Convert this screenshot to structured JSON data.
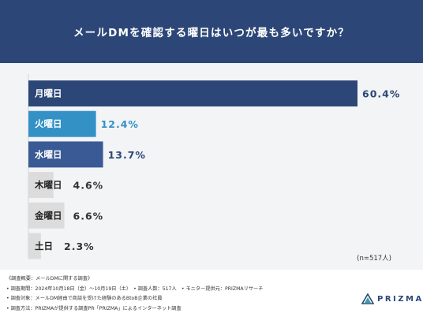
{
  "header": {
    "title": "メールDMを確認する曜日はいつが最も多いですか？"
  },
  "chart_data": {
    "type": "bar",
    "orientation": "horizontal",
    "categories": [
      "月曜日",
      "火曜日",
      "水曜日",
      "木曜日",
      "金曜日",
      "土日"
    ],
    "values": [
      60.4,
      12.4,
      13.7,
      4.6,
      6.6,
      2.3
    ],
    "value_labels": [
      "60.4%",
      "12.4%",
      "13.7%",
      "4.6%",
      "6.6%",
      "2.3%"
    ],
    "unit": "%",
    "bar_colors": [
      "#2c4777",
      "#3391c6",
      "#3a5a96",
      "#dcdcdc",
      "#dcdcdc",
      "#dcdcdc"
    ],
    "label_colors_inside": [
      "#ffffff",
      "#ffffff",
      "#ffffff",
      "#222222",
      "#222222",
      "#222222"
    ],
    "value_label_colors": [
      "#2c4777",
      "#3391c6",
      "#2c4777",
      "#333333",
      "#333333",
      "#333333"
    ],
    "sample_note": "(n=517人)"
  },
  "footer": {
    "notes": [
      "《調査概要：メールDMに関する調査》",
      "• 調査期間：2024年10月18日（金）〜10月19日（土）　• 調査人数：517人　• モニター提供元：PRIZMAリサーチ",
      "• 調査対象：メールDM経由で商談を受けた経験のあるBtoB企業の社員",
      "• 調査方法：PRIZMAが提供する調査PR「PRIZMA」によるインターネット調査"
    ],
    "logo_text": "PRIZMA"
  },
  "colors": {
    "header_bg": "#2c4777",
    "chart_bg": "#f3f4f6",
    "accent": "#3391c6"
  },
  "icons": {
    "logo": "prizma-logo-icon"
  }
}
